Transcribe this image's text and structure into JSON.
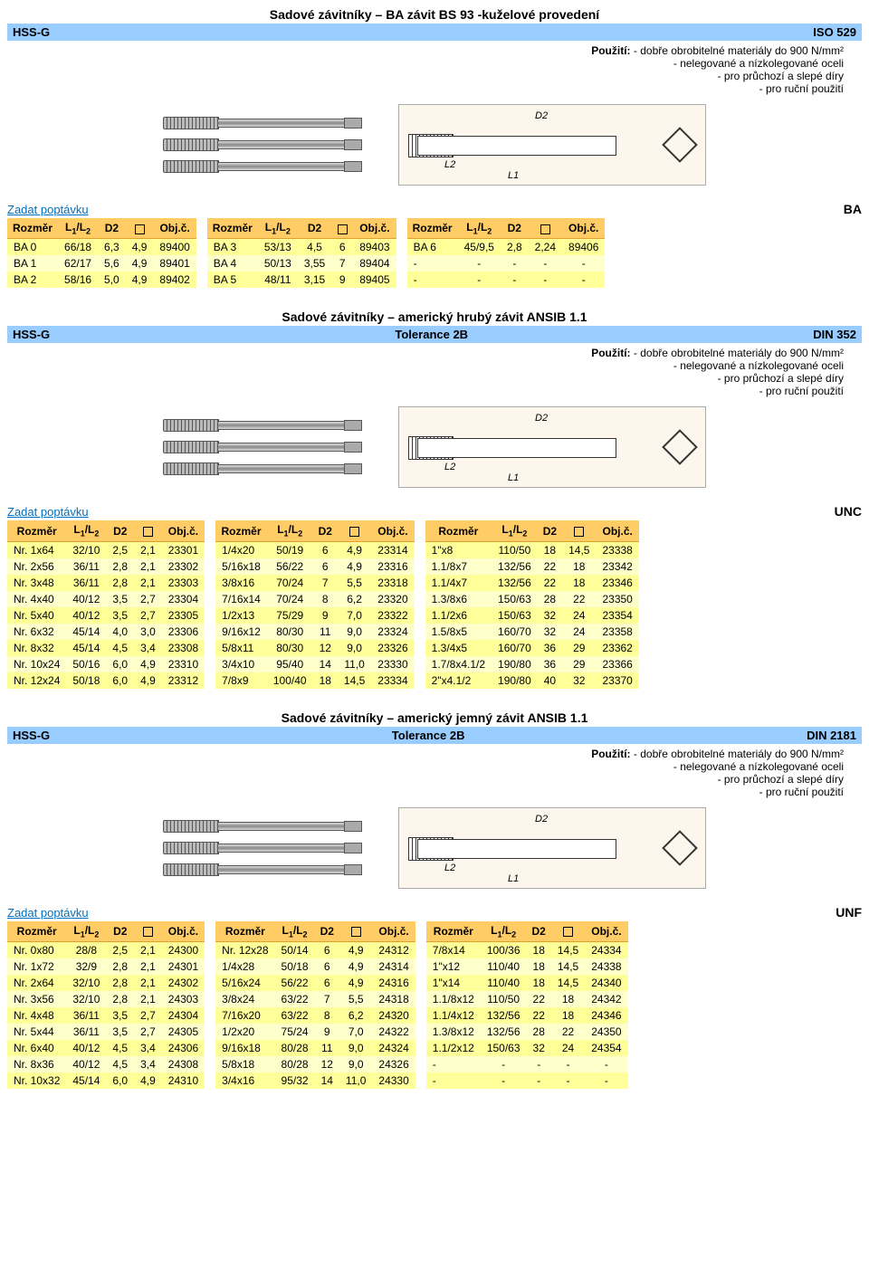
{
  "colors": {
    "header_bg": "#99ccff",
    "table_header_bg": "#ffcc66",
    "table_row_bg": "#ffff99",
    "table_row_alt_bg": "#ffffcc",
    "inquiry_color": "#0070c0",
    "diagram_bg": "#fdf6ec"
  },
  "tableHeaders": {
    "dim": "Rozměr",
    "l1l2": "L₁/L₂",
    "d2": "D2",
    "obj": "Obj.č."
  },
  "inquiryLabel": "Zadat poptávku",
  "sections": [
    {
      "title": "Sadové závitníky – BA závit BS 93 -kuželové provedení",
      "leftLabel": "HSS-G",
      "rightLabel": "ISO 529",
      "centerLabel": "",
      "threadLabel": "BA",
      "usage": [
        {
          "pre": "Použití: ",
          "text": "- dobře obrobitelné materiály do 900 N/mm²"
        },
        {
          "pre": "",
          "text": "- nelegované a nízkolegované oceli"
        },
        {
          "pre": "",
          "text": "- pro průchozí a slepé díry"
        },
        {
          "pre": "",
          "text": "- pro ruční použití"
        }
      ],
      "tables": [
        [
          [
            "BA 0",
            "66/18",
            "6,3",
            "4,9",
            "89400"
          ],
          [
            "BA 1",
            "62/17",
            "5,6",
            "4,9",
            "89401"
          ],
          [
            "BA 2",
            "58/16",
            "5,0",
            "4,9",
            "89402"
          ]
        ],
        [
          [
            "BA 3",
            "53/13",
            "4,5",
            "6",
            "89403"
          ],
          [
            "BA 4",
            "50/13",
            "3,55",
            "7",
            "89404"
          ],
          [
            "BA 5",
            "48/11",
            "3,15",
            "9",
            "89405"
          ]
        ],
        [
          [
            "BA 6",
            "45/9,5",
            "2,8",
            "2,24",
            "89406"
          ],
          [
            "-",
            "-",
            "-",
            "-",
            "-"
          ],
          [
            "-",
            "-",
            "-",
            "-",
            "-"
          ]
        ]
      ]
    },
    {
      "title": "Sadové závitníky – americký hrubý závit ANSIB 1.1",
      "leftLabel": "HSS-G",
      "centerLabel": "Tolerance 2B",
      "rightLabel": "DIN 352",
      "threadLabel": "UNC",
      "usage": [
        {
          "pre": "Použití: ",
          "text": "- dobře obrobitelné materiály do 900 N/mm²"
        },
        {
          "pre": "",
          "text": "- nelegované a nízkolegované oceli"
        },
        {
          "pre": "",
          "text": "- pro průchozí a slepé díry"
        },
        {
          "pre": "",
          "text": "- pro ruční použití"
        }
      ],
      "tables": [
        [
          [
            "Nr. 1x64",
            "32/10",
            "2,5",
            "2,1",
            "23301"
          ],
          [
            "Nr. 2x56",
            "36/11",
            "2,8",
            "2,1",
            "23302"
          ],
          [
            "Nr. 3x48",
            "36/11",
            "2,8",
            "2,1",
            "23303"
          ],
          [
            "Nr. 4x40",
            "40/12",
            "3,5",
            "2,7",
            "23304"
          ],
          [
            "Nr. 5x40",
            "40/12",
            "3,5",
            "2,7",
            "23305"
          ],
          [
            "Nr. 6x32",
            "45/14",
            "4,0",
            "3,0",
            "23306"
          ],
          [
            "Nr. 8x32",
            "45/14",
            "4,5",
            "3,4",
            "23308"
          ],
          [
            "Nr. 10x24",
            "50/16",
            "6,0",
            "4,9",
            "23310"
          ],
          [
            "Nr. 12x24",
            "50/18",
            "6,0",
            "4,9",
            "23312"
          ]
        ],
        [
          [
            "1/4x20",
            "50/19",
            "6",
            "4,9",
            "23314"
          ],
          [
            "5/16x18",
            "56/22",
            "6",
            "4,9",
            "23316"
          ],
          [
            "3/8x16",
            "70/24",
            "7",
            "5,5",
            "23318"
          ],
          [
            "7/16x14",
            "70/24",
            "8",
            "6,2",
            "23320"
          ],
          [
            "1/2x13",
            "75/29",
            "9",
            "7,0",
            "23322"
          ],
          [
            "9/16x12",
            "80/30",
            "11",
            "9,0",
            "23324"
          ],
          [
            "5/8x11",
            "80/30",
            "12",
            "9,0",
            "23326"
          ],
          [
            "3/4x10",
            "95/40",
            "14",
            "11,0",
            "23330"
          ],
          [
            "7/8x9",
            "100/40",
            "18",
            "14,5",
            "23334"
          ]
        ],
        [
          [
            "1\"x8",
            "110/50",
            "18",
            "14,5",
            "23338"
          ],
          [
            "1.1/8x7",
            "132/56",
            "22",
            "18",
            "23342"
          ],
          [
            "1.1/4x7",
            "132/56",
            "22",
            "18",
            "23346"
          ],
          [
            "1.3/8x6",
            "150/63",
            "28",
            "22",
            "23350"
          ],
          [
            "1.1/2x6",
            "150/63",
            "32",
            "24",
            "23354"
          ],
          [
            "1.5/8x5",
            "160/70",
            "32",
            "24",
            "23358"
          ],
          [
            "1.3/4x5",
            "160/70",
            "36",
            "29",
            "23362"
          ],
          [
            "1.7/8x4.1/2",
            "190/80",
            "36",
            "29",
            "23366"
          ],
          [
            "2\"x4.1/2",
            "190/80",
            "40",
            "32",
            "23370"
          ]
        ]
      ]
    },
    {
      "title": "Sadové závitníky – americký jemný závit ANSIB 1.1",
      "leftLabel": "HSS-G",
      "centerLabel": "Tolerance 2B",
      "rightLabel": "DIN 2181",
      "threadLabel": "UNF",
      "usage": [
        {
          "pre": "Použití: ",
          "text": "- dobře obrobitelné materiály do 900 N/mm²"
        },
        {
          "pre": "",
          "text": "- nelegované a nízkolegované oceli"
        },
        {
          "pre": "",
          "text": "- pro průchozí a slepé díry"
        },
        {
          "pre": "",
          "text": "- pro ruční použití"
        }
      ],
      "tables": [
        [
          [
            "Nr. 0x80",
            "28/8",
            "2,5",
            "2,1",
            "24300"
          ],
          [
            "Nr. 1x72",
            "32/9",
            "2,8",
            "2,1",
            "24301"
          ],
          [
            "Nr. 2x64",
            "32/10",
            "2,8",
            "2,1",
            "24302"
          ],
          [
            "Nr. 3x56",
            "32/10",
            "2,8",
            "2,1",
            "24303"
          ],
          [
            "Nr. 4x48",
            "36/11",
            "3,5",
            "2,7",
            "24304"
          ],
          [
            "Nr. 5x44",
            "36/11",
            "3,5",
            "2,7",
            "24305"
          ],
          [
            "Nr. 6x40",
            "40/12",
            "4,5",
            "3,4",
            "24306"
          ],
          [
            "Nr. 8x36",
            "40/12",
            "4,5",
            "3,4",
            "24308"
          ],
          [
            "Nr. 10x32",
            "45/14",
            "6,0",
            "4,9",
            "24310"
          ]
        ],
        [
          [
            "Nr. 12x28",
            "50/14",
            "6",
            "4,9",
            "24312"
          ],
          [
            "1/4x28",
            "50/18",
            "6",
            "4,9",
            "24314"
          ],
          [
            "5/16x24",
            "56/22",
            "6",
            "4,9",
            "24316"
          ],
          [
            "3/8x24",
            "63/22",
            "7",
            "5,5",
            "24318"
          ],
          [
            "7/16x20",
            "63/22",
            "8",
            "6,2",
            "24320"
          ],
          [
            "1/2x20",
            "75/24",
            "9",
            "7,0",
            "24322"
          ],
          [
            "9/16x18",
            "80/28",
            "11",
            "9,0",
            "24324"
          ],
          [
            "5/8x18",
            "80/28",
            "12",
            "9,0",
            "24326"
          ],
          [
            "3/4x16",
            "95/32",
            "14",
            "11,0",
            "24330"
          ]
        ],
        [
          [
            "7/8x14",
            "100/36",
            "18",
            "14,5",
            "24334"
          ],
          [
            "1\"x12",
            "110/40",
            "18",
            "14,5",
            "24338"
          ],
          [
            "1\"x14",
            "110/40",
            "18",
            "14,5",
            "24340"
          ],
          [
            "1.1/8x12",
            "110/50",
            "22",
            "18",
            "24342"
          ],
          [
            "1.1/4x12",
            "132/56",
            "22",
            "18",
            "24346"
          ],
          [
            "1.3/8x12",
            "132/56",
            "28",
            "22",
            "24350"
          ],
          [
            "1.1/2x12",
            "150/63",
            "32",
            "24",
            "24354"
          ],
          [
            "-",
            "-",
            "-",
            "-",
            "-"
          ],
          [
            "-",
            "-",
            "-",
            "-",
            "-"
          ]
        ]
      ]
    }
  ]
}
